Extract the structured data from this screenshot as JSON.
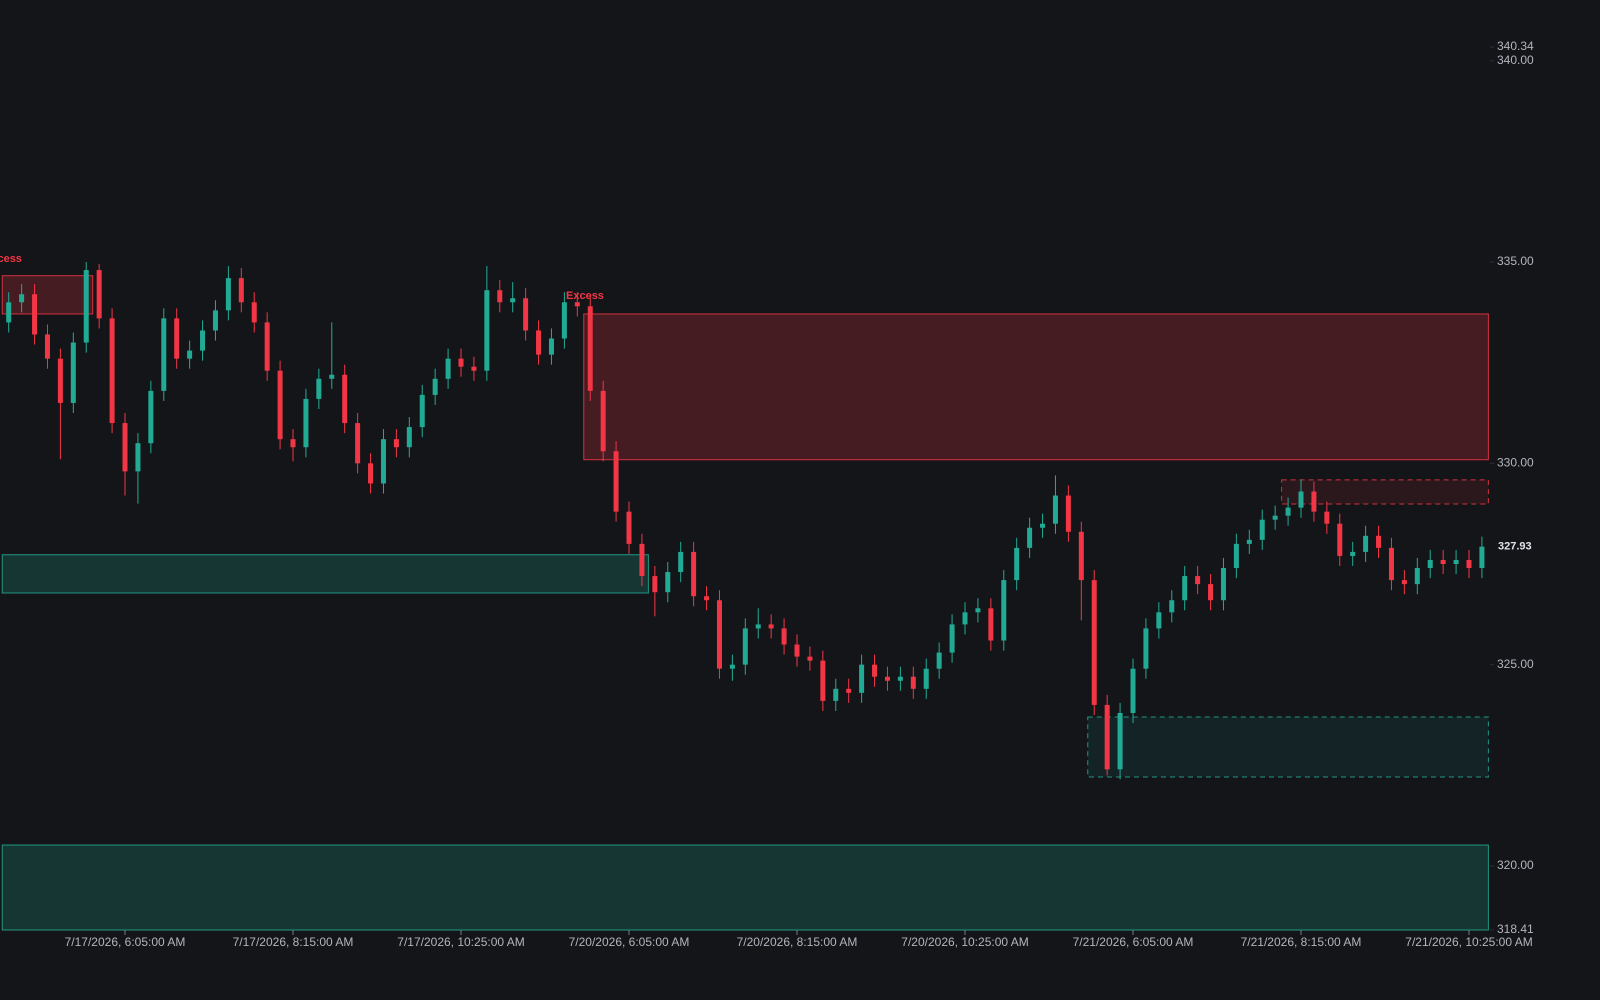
{
  "chart_data": {
    "type": "candlestick",
    "categories": [
      null,
      null,
      null,
      null,
      null,
      null,
      null,
      null,
      null,
      "7/17/2026, 6:05:00 AM",
      null,
      null,
      null,
      null,
      null,
      null,
      null,
      null,
      null,
      null,
      null,
      null,
      "7/17/2026, 8:15:00 AM",
      null,
      null,
      null,
      null,
      null,
      null,
      null,
      null,
      null,
      null,
      null,
      null,
      "7/17/2026, 10:25:00 AM",
      null,
      null,
      null,
      null,
      null,
      null,
      null,
      null,
      null,
      null,
      null,
      null,
      "7/20/2026, 6:05:00 AM",
      null,
      null,
      null,
      null,
      null,
      null,
      null,
      null,
      null,
      null,
      null,
      null,
      "7/20/2026, 8:15:00 AM",
      null,
      null,
      null,
      null,
      null,
      null,
      null,
      null,
      null,
      null,
      null,
      null,
      "7/20/2026, 10:25:00 AM",
      null,
      null,
      null,
      null,
      null,
      null,
      null,
      null,
      null,
      null,
      null,
      null,
      "7/21/2026, 6:05:00 AM",
      null,
      null,
      null,
      null,
      null,
      null,
      null,
      null,
      null,
      null,
      null,
      null,
      "7/21/2026, 8:15:00 AM",
      null,
      null,
      null,
      null,
      null,
      null,
      null,
      null,
      null,
      null,
      null,
      null,
      "7/21/2026, 10:25:00 AM",
      null
    ],
    "open": [
      333.5,
      334.0,
      334.2,
      333.2,
      332.6,
      331.5,
      333.0,
      334.8,
      333.6,
      331.0,
      329.8,
      330.5,
      331.8,
      333.6,
      332.6,
      332.8,
      333.3,
      333.8,
      334.6,
      334.0,
      333.5,
      332.3,
      330.6,
      330.4,
      331.6,
      332.1,
      332.2,
      331.0,
      330.0,
      329.5,
      330.6,
      330.4,
      330.9,
      331.7,
      332.1,
      332.6,
      332.4,
      332.3,
      334.3,
      334.0,
      334.1,
      333.3,
      332.7,
      333.1,
      334.0,
      333.9,
      331.8,
      330.3,
      328.8,
      328.0,
      327.2,
      326.8,
      327.3,
      327.8,
      326.7,
      326.6,
      324.9,
      325.0,
      325.9,
      326.0,
      325.9,
      325.5,
      325.2,
      325.1,
      324.1,
      324.4,
      324.3,
      325.0,
      324.7,
      324.6,
      324.7,
      324.4,
      324.9,
      325.3,
      326.0,
      326.3,
      326.4,
      325.6,
      327.1,
      327.9,
      328.4,
      328.5,
      329.2,
      328.3,
      327.1,
      324.0,
      322.4,
      323.8,
      324.9,
      325.9,
      326.3,
      326.6,
      327.2,
      327.0,
      326.6,
      327.4,
      328.0,
      328.1,
      328.6,
      328.7,
      328.9,
      329.3,
      328.8,
      328.5,
      327.7,
      327.8,
      328.2,
      327.9,
      327.1,
      327.0,
      327.4,
      327.6,
      327.5,
      327.6,
      327.4
    ],
    "high": [
      334.25,
      334.45,
      334.45,
      333.45,
      332.85,
      333.25,
      335.0,
      334.95,
      333.85,
      331.25,
      330.75,
      332.05,
      333.85,
      333.85,
      333.05,
      333.55,
      334.05,
      334.9,
      334.85,
      334.25,
      333.75,
      332.55,
      330.85,
      331.85,
      332.35,
      333.5,
      332.45,
      331.25,
      330.25,
      330.85,
      330.85,
      331.15,
      331.95,
      332.35,
      332.85,
      332.85,
      332.65,
      334.9,
      334.55,
      334.5,
      334.35,
      333.55,
      333.35,
      334.25,
      334.25,
      334.15,
      332.05,
      330.55,
      329.05,
      328.25,
      327.45,
      327.55,
      328.05,
      328.05,
      326.95,
      326.85,
      325.25,
      326.15,
      326.4,
      326.25,
      326.15,
      325.75,
      325.45,
      325.35,
      324.65,
      324.65,
      325.25,
      325.25,
      324.95,
      324.95,
      324.95,
      325.15,
      325.55,
      326.25,
      326.55,
      326.65,
      326.65,
      327.35,
      328.15,
      328.65,
      328.75,
      329.7,
      329.45,
      328.55,
      327.35,
      324.25,
      324.05,
      325.15,
      326.15,
      326.55,
      326.85,
      327.45,
      327.45,
      327.25,
      327.65,
      328.25,
      328.35,
      328.85,
      328.95,
      329.15,
      329.6,
      329.55,
      329.05,
      328.75,
      328.05,
      328.45,
      328.45,
      328.15,
      327.35,
      327.65,
      327.85,
      327.85,
      327.85,
      327.85,
      328.18
    ],
    "low": [
      333.25,
      333.75,
      332.95,
      332.35,
      330.1,
      331.25,
      332.75,
      333.35,
      330.75,
      329.2,
      329.0,
      330.25,
      331.55,
      332.35,
      332.35,
      332.55,
      333.05,
      333.55,
      333.75,
      333.25,
      332.05,
      330.35,
      330.05,
      330.15,
      331.35,
      331.85,
      330.75,
      329.75,
      329.25,
      329.25,
      330.15,
      330.15,
      330.65,
      331.45,
      331.85,
      332.15,
      332.05,
      332.05,
      333.75,
      333.75,
      333.05,
      332.45,
      332.45,
      332.85,
      333.65,
      331.55,
      330.05,
      328.55,
      327.75,
      326.95,
      326.2,
      326.55,
      327.05,
      326.45,
      326.35,
      324.65,
      324.6,
      324.75,
      325.65,
      325.65,
      325.25,
      324.95,
      324.85,
      323.85,
      323.85,
      324.05,
      324.05,
      324.45,
      324.35,
      324.35,
      324.15,
      324.15,
      324.65,
      325.05,
      325.75,
      326.05,
      325.35,
      325.35,
      326.85,
      327.65,
      328.15,
      328.25,
      328.05,
      326.1,
      323.75,
      322.25,
      322.15,
      323.55,
      324.65,
      325.65,
      326.05,
      326.35,
      326.75,
      326.35,
      326.35,
      327.15,
      327.75,
      327.85,
      328.35,
      328.45,
      328.65,
      328.55,
      328.25,
      327.45,
      327.45,
      327.55,
      327.65,
      326.85,
      326.75,
      326.75,
      327.15,
      327.25,
      327.25,
      327.15,
      327.15
    ],
    "close": [
      334.0,
      334.2,
      333.2,
      332.6,
      331.5,
      333.0,
      334.8,
      333.6,
      331.0,
      329.8,
      330.5,
      331.8,
      333.6,
      332.6,
      332.8,
      333.3,
      333.8,
      334.6,
      334.0,
      333.5,
      332.3,
      330.6,
      330.4,
      331.6,
      332.1,
      332.2,
      331.0,
      330.0,
      329.5,
      330.6,
      330.4,
      330.9,
      331.7,
      332.1,
      332.6,
      332.4,
      332.3,
      334.3,
      334.0,
      334.1,
      333.3,
      332.7,
      333.1,
      334.0,
      333.9,
      331.8,
      330.3,
      328.8,
      328.0,
      327.2,
      326.8,
      327.3,
      327.8,
      326.7,
      326.6,
      324.9,
      325.0,
      325.9,
      326.0,
      325.9,
      325.5,
      325.2,
      325.1,
      324.1,
      324.4,
      324.3,
      325.0,
      324.7,
      324.6,
      324.7,
      324.4,
      324.9,
      325.3,
      326.0,
      326.3,
      326.4,
      325.6,
      327.1,
      327.9,
      328.4,
      328.5,
      329.2,
      328.3,
      327.1,
      324.0,
      322.4,
      323.8,
      324.9,
      325.9,
      326.3,
      326.6,
      327.2,
      327.0,
      326.6,
      327.4,
      328.0,
      328.1,
      328.6,
      328.7,
      328.9,
      329.3,
      328.8,
      328.5,
      327.7,
      327.8,
      328.2,
      327.9,
      327.1,
      327.0,
      327.4,
      327.6,
      327.5,
      327.6,
      327.4,
      327.93
    ],
    "up_color": "#22ab94",
    "down_color": "#f23645",
    "zones": [
      {
        "top": 334.66,
        "bottom": 333.71,
        "start": 0,
        "end": 6,
        "color": "#f23645",
        "dashed": false
      },
      {
        "top": 333.71,
        "bottom": 330.09,
        "start": 45,
        "end": 114,
        "color": "#f23645",
        "dashed": false
      },
      {
        "top": 327.73,
        "bottom": 326.78,
        "start": 0,
        "end": 49,
        "color": "#22ab94",
        "dashed": false
      },
      {
        "top": 329.59,
        "bottom": 328.99,
        "start": 99,
        "end": 114,
        "color": "#f23645",
        "dashed": true
      },
      {
        "top": 323.7,
        "bottom": 322.21,
        "start": 84,
        "end": 114,
        "color": "#22ab94",
        "dashed": true
      },
      {
        "top": 320.52,
        "bottom": 318.41,
        "start": 0,
        "end": 114,
        "color": "#22ab94",
        "dashed": false
      }
    ],
    "annotations": [
      "Excess",
      "Excess"
    ],
    "ylim": [
      318.41,
      340.34
    ],
    "yticks": [
      318.41,
      {
        "value": 320,
        "label": "320.00"
      },
      {
        "value": 325,
        "label": "325.00"
      },
      {
        "value": 330,
        "label": "330.00"
      },
      {
        "value": 335,
        "label": "335.00"
      },
      {
        "value": 340,
        "label": "340.00"
      },
      340.34
    ],
    "grid": false
  }
}
